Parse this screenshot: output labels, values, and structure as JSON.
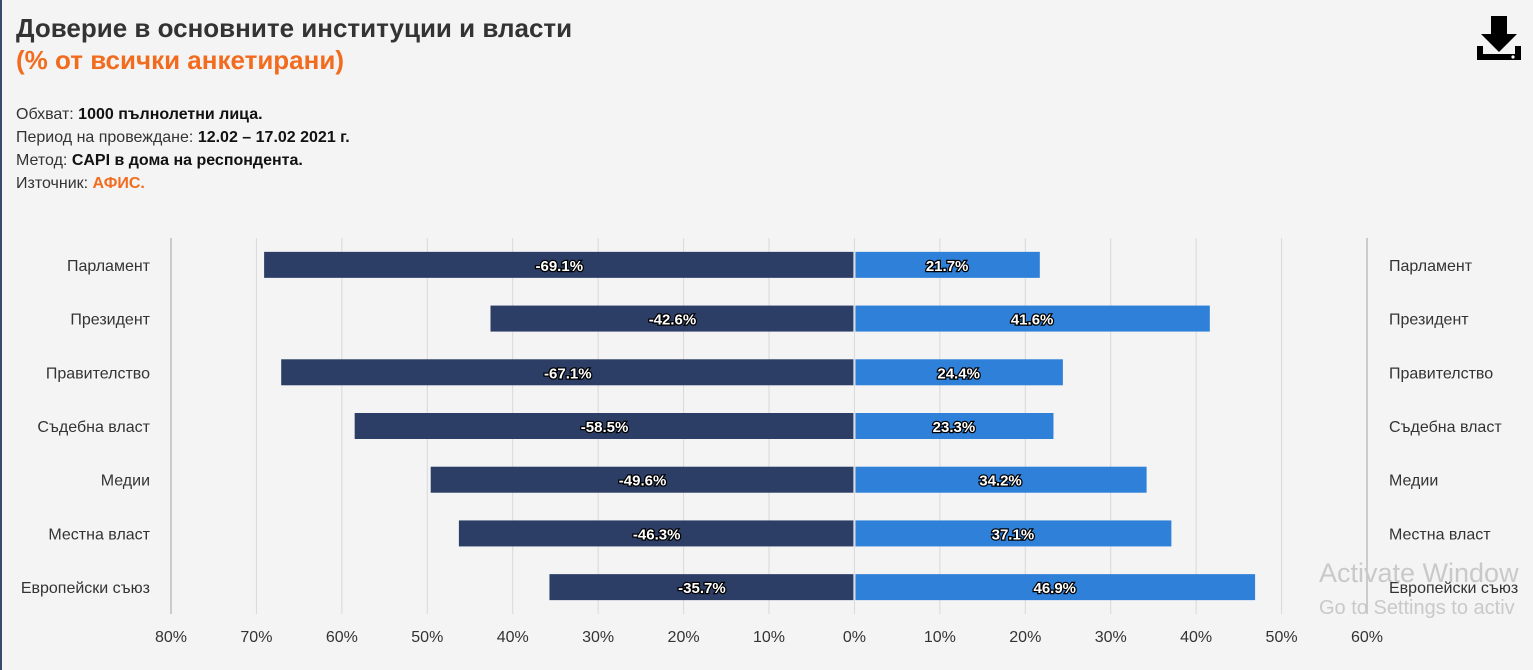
{
  "title": "Доверие в основните институции и власти",
  "subtitle": "(% от всички анкетирани)",
  "meta": {
    "scope_label": "Обхват:",
    "scope_value": "1000 пълнолетни лица.",
    "period_label": "Период на провеждане:",
    "period_value": "12.02 – 17.02 2021 г.",
    "method_label": "Метод:",
    "method_value": "CAPI в дома на респондента.",
    "source_label": "Източник:",
    "source_value": "АФИС."
  },
  "toolbar": {
    "download_icon": "download-icon"
  },
  "watermark": {
    "line1": "Activate Window",
    "line2": "Go to Settings to activ"
  },
  "colors": {
    "negative": "#2c3e66",
    "positive": "#2f80d9",
    "accent": "#f26c1f",
    "grid": "#d9d9d9"
  },
  "chart_data": {
    "type": "bar",
    "orientation": "horizontal-diverging",
    "categories": [
      "Парламент",
      "Президент",
      "Правителство",
      "Съдебна власт",
      "Медии",
      "Местна власт",
      "Европейски съюз"
    ],
    "series": [
      {
        "values": [
          -69.1,
          -42.6,
          -67.1,
          -58.5,
          -49.6,
          -46.3,
          -35.7
        ],
        "labels": [
          "-69.1%",
          "-42.6%",
          "-67.1%",
          "-58.5%",
          "-49.6%",
          "-46.3%",
          "-35.7%"
        ]
      },
      {
        "values": [
          21.7,
          41.6,
          24.4,
          23.3,
          34.2,
          37.1,
          46.9
        ],
        "labels": [
          "21.7%",
          "41.6%",
          "24.4%",
          "23.3%",
          "34.2%",
          "37.1%",
          "46.9%"
        ]
      }
    ],
    "xlim": [
      -80,
      60
    ],
    "x_ticks": [
      -80,
      -70,
      -60,
      -50,
      -40,
      -30,
      -20,
      -10,
      0,
      10,
      20,
      30,
      40,
      50,
      60
    ],
    "x_tick_labels": [
      "80%",
      "70%",
      "60%",
      "50%",
      "40%",
      "30%",
      "20%",
      "10%",
      "0%",
      "10%",
      "20%",
      "30%",
      "40%",
      "50%",
      "60%"
    ],
    "grid": true,
    "category_labels_both_sides": true
  }
}
